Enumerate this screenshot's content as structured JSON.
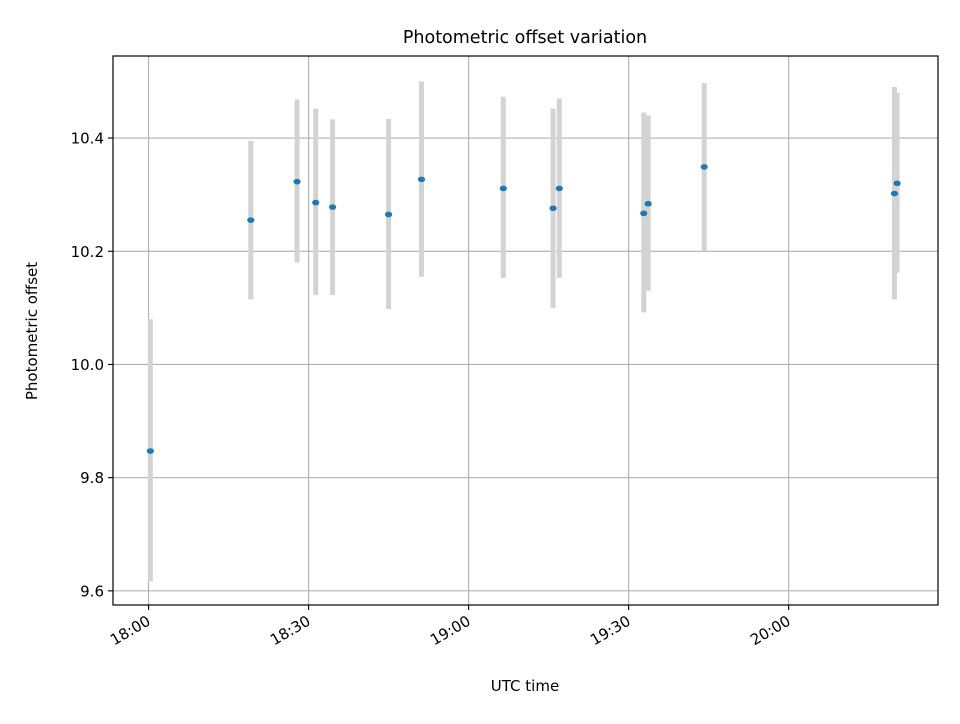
{
  "chart_data": {
    "type": "scatter",
    "title": "Photometric offset variation",
    "xlabel": "UTC time",
    "ylabel": "Photometric offset",
    "x_is_time": true,
    "xlim": [
      "17:53:20",
      "20:28:00"
    ],
    "ylim": [
      9.575,
      10.545
    ],
    "x_ticks": [
      "18:00",
      "18:30",
      "19:00",
      "19:30",
      "20:00"
    ],
    "y_ticks": [
      9.6,
      9.8,
      10.0,
      10.2,
      10.4
    ],
    "grid": true,
    "colors": {
      "marker": "#1f77b4",
      "errorbar": "#d3d3d3",
      "grid": "#b0b0b0",
      "axes": "#000000"
    },
    "series": [
      {
        "points": [
          {
            "x": "18:00:20",
            "y": 9.847,
            "y_low": 9.617,
            "y_high": 10.08
          },
          {
            "x": "18:19:10",
            "y": 10.255,
            "y_low": 10.115,
            "y_high": 10.395
          },
          {
            "x": "18:27:50",
            "y": 10.323,
            "y_low": 10.18,
            "y_high": 10.468
          },
          {
            "x": "18:31:20",
            "y": 10.286,
            "y_low": 10.123,
            "y_high": 10.452
          },
          {
            "x": "18:34:30",
            "y": 10.278,
            "y_low": 10.123,
            "y_high": 10.433
          },
          {
            "x": "18:45:00",
            "y": 10.265,
            "y_low": 10.098,
            "y_high": 10.434
          },
          {
            "x": "18:51:10",
            "y": 10.327,
            "y_low": 10.155,
            "y_high": 10.5
          },
          {
            "x": "19:06:30",
            "y": 10.311,
            "y_low": 10.153,
            "y_high": 10.473
          },
          {
            "x": "19:15:50",
            "y": 10.276,
            "y_low": 10.1,
            "y_high": 10.452
          },
          {
            "x": "19:17:00",
            "y": 10.311,
            "y_low": 10.153,
            "y_high": 10.47
          },
          {
            "x": "19:32:50",
            "y": 10.267,
            "y_low": 10.092,
            "y_high": 10.445
          },
          {
            "x": "19:33:40",
            "y": 10.284,
            "y_low": 10.13,
            "y_high": 10.44
          },
          {
            "x": "19:44:10",
            "y": 10.349,
            "y_low": 10.2,
            "y_high": 10.497
          },
          {
            "x": "20:19:50",
            "y": 10.302,
            "y_low": 10.115,
            "y_high": 10.49
          },
          {
            "x": "20:20:20",
            "y": 10.32,
            "y_low": 10.162,
            "y_high": 10.48
          }
        ]
      }
    ]
  }
}
